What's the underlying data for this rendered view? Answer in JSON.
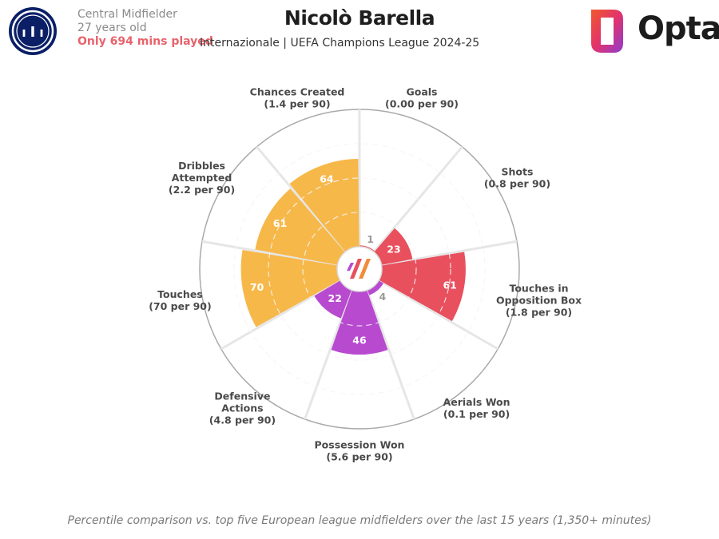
{
  "header": {
    "position": "Central Midfielder",
    "age": "27 years old",
    "minutes_note": "Only 694 mins played",
    "player_name": "Nicolò Barella",
    "subtitle": "Internazionale | UEFA Champions League 2024-25",
    "brand": "Opta"
  },
  "footnote": "Percentile comparison vs. top five European league midfielders over the last 15 years (1,350+ minutes)",
  "colors": {
    "attacking": "#e8505e",
    "defending": "#b84ad0",
    "possession": "#f7b84a",
    "outer_ring": "#a9a9a9",
    "spokes": "#e6e6e6",
    "inner_rings": "#f4f4f4"
  },
  "chart_data": {
    "type": "polar-bar",
    "scale": [
      0,
      100
    ],
    "grid_rings": [
      25,
      50,
      75
    ],
    "categories": [
      {
        "name": "Goals",
        "rate": "(0.00 per 90)",
        "percentile": 1,
        "group": "attacking"
      },
      {
        "name": "Shots",
        "rate": "(0.8 per 90)",
        "percentile": 23,
        "group": "attacking"
      },
      {
        "name": "Touches in Opposition Box",
        "name_lines": [
          "Touches in",
          "Opposition Box"
        ],
        "rate": "(1.8 per 90)",
        "percentile": 61,
        "group": "attacking"
      },
      {
        "name": "Aerials Won",
        "rate": "(0.1 per 90)",
        "percentile": 4,
        "group": "defending"
      },
      {
        "name": "Possession Won",
        "rate": "(5.6 per 90)",
        "percentile": 46,
        "group": "defending"
      },
      {
        "name": "Defensive Actions",
        "name_lines": [
          "Defensive",
          "Actions"
        ],
        "rate": "(4.8 per 90)",
        "percentile": 22,
        "group": "defending"
      },
      {
        "name": "Touches",
        "rate": "(70 per 90)",
        "percentile": 70,
        "group": "possession"
      },
      {
        "name": "Dribbles Attempted",
        "name_lines": [
          "Dribbles",
          "Attempted"
        ],
        "rate": "(2.2 per 90)",
        "percentile": 61,
        "group": "possession"
      },
      {
        "name": "Chances Created",
        "rate": "(1.4 per 90)",
        "percentile": 64,
        "group": "possession"
      }
    ]
  }
}
